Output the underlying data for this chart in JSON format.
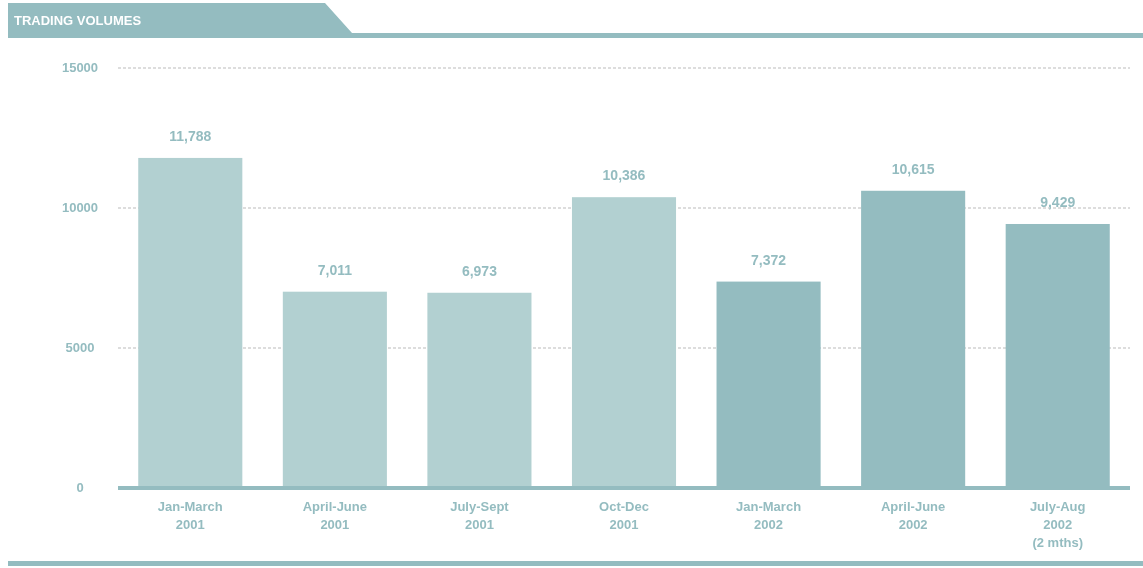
{
  "chart_data": {
    "type": "bar",
    "title": "TRADING VOLUMES",
    "categories": [
      "Jan-March\n2001",
      "April-June\n2001",
      "July-Sept\n2001",
      "Oct-Dec\n2001",
      "Jan-March\n2002",
      "April-June\n2002",
      "July-Aug\n2002\n(2 mths)"
    ],
    "values": [
      11788,
      7011,
      6973,
      10386,
      7372,
      10615,
      9429
    ],
    "colors": [
      "#b2d0d1",
      "#b2d0d1",
      "#b2d0d1",
      "#b2d0d1",
      "#94bcc0",
      "#94bcc0",
      "#94bcc0"
    ],
    "value_labels": [
      "11,788",
      "7,011",
      "6,973",
      "10,386",
      "7,372",
      "10,615",
      "9,429"
    ],
    "ylim": [
      0,
      15000
    ],
    "yticks": [
      0,
      5000,
      10000,
      15000
    ],
    "grid": "y"
  }
}
